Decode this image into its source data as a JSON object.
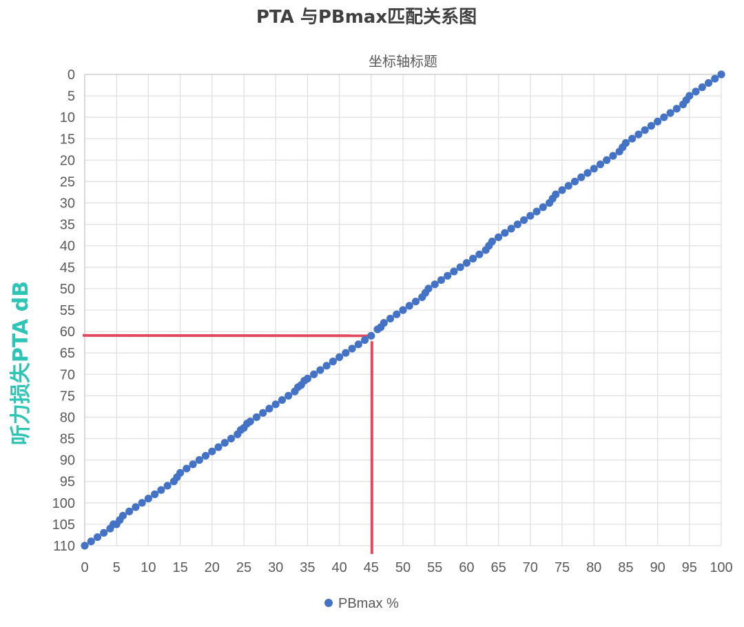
{
  "chart_data": {
    "type": "scatter",
    "title": "PTA  与PBmax匹配关系图",
    "top_axis_title": "坐标轴标题",
    "ylabel": "听力损失PTA  dB",
    "xlabel": "",
    "xlim": [
      0,
      100
    ],
    "ylim": [
      0,
      110
    ],
    "y_axis_reversed": true,
    "x_axis_position": "bottom",
    "x_ticks": [
      "0",
      "5",
      "10",
      "15",
      "20",
      "25",
      "30",
      "35",
      "40",
      "45",
      "50",
      "55",
      "60",
      "65",
      "70",
      "75",
      "80",
      "85",
      "90",
      "95",
      "100"
    ],
    "y_ticks": [
      "0",
      "5",
      "10",
      "15",
      "20",
      "25",
      "30",
      "35",
      "40",
      "45",
      "50",
      "55",
      "60",
      "65",
      "70",
      "75",
      "80",
      "85",
      "90",
      "95",
      "100",
      "105",
      "110"
    ],
    "grid": true,
    "legend": {
      "position": "bottom",
      "label": "PBmax %"
    },
    "colors": {
      "series": "#4472c4",
      "annotation": "#e0495e",
      "ylabel": "#2ec4b6",
      "grid": "#e0e0e0"
    },
    "annotation": {
      "x": 45,
      "y": 61,
      "type": "reference-lines"
    },
    "series": [
      {
        "name": "PBmax %",
        "points": [
          [
            0,
            110
          ],
          [
            1,
            109
          ],
          [
            2,
            108
          ],
          [
            3,
            107
          ],
          [
            4,
            106
          ],
          [
            4.5,
            105
          ],
          [
            5,
            105
          ],
          [
            5.5,
            104
          ],
          [
            6,
            103
          ],
          [
            7,
            102
          ],
          [
            8,
            101
          ],
          [
            9,
            100
          ],
          [
            10,
            99
          ],
          [
            11,
            98
          ],
          [
            12,
            97
          ],
          [
            13,
            96
          ],
          [
            14,
            95
          ],
          [
            14.5,
            94
          ],
          [
            15,
            93
          ],
          [
            16,
            92
          ],
          [
            17,
            91
          ],
          [
            18,
            90
          ],
          [
            19,
            89
          ],
          [
            20,
            88
          ],
          [
            21,
            87
          ],
          [
            22,
            86
          ],
          [
            23,
            85
          ],
          [
            24,
            84
          ],
          [
            24.5,
            83
          ],
          [
            25,
            82.5
          ],
          [
            25.5,
            81.5
          ],
          [
            26,
            81
          ],
          [
            27,
            80
          ],
          [
            28,
            79
          ],
          [
            29,
            78
          ],
          [
            30,
            77
          ],
          [
            31,
            76
          ],
          [
            32,
            75
          ],
          [
            33,
            74
          ],
          [
            33.5,
            73
          ],
          [
            34,
            72.5
          ],
          [
            34.5,
            71.5
          ],
          [
            35,
            71
          ],
          [
            36,
            70
          ],
          [
            37,
            69
          ],
          [
            38,
            68
          ],
          [
            39,
            67
          ],
          [
            40,
            66
          ],
          [
            41,
            65
          ],
          [
            42,
            64
          ],
          [
            43,
            63
          ],
          [
            44,
            62
          ],
          [
            45,
            61
          ],
          [
            46,
            59.5
          ],
          [
            46.5,
            59
          ],
          [
            47,
            58
          ],
          [
            48,
            57
          ],
          [
            49,
            56
          ],
          [
            50,
            55
          ],
          [
            51,
            54
          ],
          [
            52,
            53
          ],
          [
            53,
            52
          ],
          [
            53.5,
            51
          ],
          [
            54,
            50
          ],
          [
            55,
            49
          ],
          [
            56,
            48
          ],
          [
            57,
            47
          ],
          [
            58,
            46
          ],
          [
            59,
            45
          ],
          [
            60,
            44
          ],
          [
            61,
            43
          ],
          [
            62,
            42
          ],
          [
            63,
            41
          ],
          [
            63.5,
            40
          ],
          [
            64,
            39
          ],
          [
            65,
            38
          ],
          [
            66,
            37
          ],
          [
            67,
            36
          ],
          [
            68,
            35
          ],
          [
            69,
            34
          ],
          [
            70,
            33
          ],
          [
            71,
            32
          ],
          [
            72,
            31
          ],
          [
            73,
            30
          ],
          [
            73.5,
            29
          ],
          [
            74,
            28
          ],
          [
            75,
            27
          ],
          [
            76,
            26
          ],
          [
            77,
            25
          ],
          [
            78,
            24
          ],
          [
            79,
            23
          ],
          [
            80,
            22
          ],
          [
            81,
            21
          ],
          [
            82,
            20
          ],
          [
            83,
            19
          ],
          [
            84,
            18
          ],
          [
            84.5,
            17
          ],
          [
            85,
            16
          ],
          [
            86,
            15
          ],
          [
            87,
            14
          ],
          [
            88,
            13
          ],
          [
            89,
            12
          ],
          [
            90,
            11
          ],
          [
            91,
            10
          ],
          [
            92,
            9
          ],
          [
            93,
            8
          ],
          [
            94,
            7
          ],
          [
            94.5,
            6
          ],
          [
            95,
            5
          ],
          [
            96,
            4
          ],
          [
            97,
            3
          ],
          [
            98,
            2
          ],
          [
            99,
            1
          ],
          [
            100,
            0
          ]
        ]
      }
    ]
  }
}
